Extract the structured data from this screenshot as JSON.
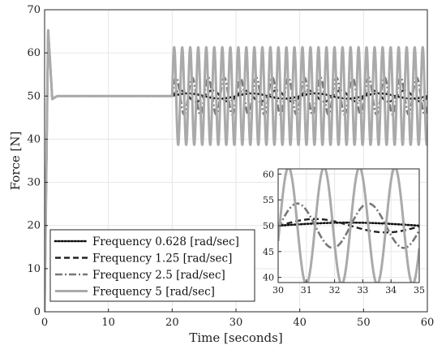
{
  "chart_data": [
    {
      "type": "line",
      "title": "",
      "xlabel": "Time [seconds]",
      "ylabel": "Force [N]",
      "xlim": [
        0,
        60
      ],
      "ylim": [
        0,
        70
      ],
      "xticks": [
        0,
        10,
        20,
        30,
        40,
        50,
        60
      ],
      "yticks": [
        0,
        10,
        20,
        30,
        40,
        50,
        60,
        70
      ],
      "grid": true,
      "legend_position": "bottom-left",
      "series": [
        {
          "name": "Frequency 0.628 [rad/sec]",
          "color": "#111111",
          "style": "dotted",
          "transient": {
            "peak": 65.5,
            "steady": 50
          },
          "oscillation": {
            "start": 20,
            "center": 50,
            "amplitude": 0.6,
            "omega": 0.628,
            "phase": 0
          }
        },
        {
          "name": "Frequency 1.25 [rad/sec]",
          "color": "#222222",
          "style": "dashed",
          "transient": {
            "peak": 65.5,
            "steady": 50
          },
          "oscillation": {
            "start": 20,
            "center": 50,
            "amplitude": 1.3,
            "omega": 1.25,
            "phase": 0
          }
        },
        {
          "name": "Frequency 2.5 [rad/sec]",
          "color": "#777777",
          "style": "dashdot",
          "transient": {
            "peak": 65.5,
            "steady": 50
          },
          "oscillation": {
            "start": 20,
            "center": 50,
            "amplitude": 4.3,
            "omega": 2.5,
            "phase": 0
          }
        },
        {
          "name": "Frequency 5 [rad/sec]",
          "color": "#aaaaaa",
          "style": "solid",
          "transient": {
            "peak": 65.5,
            "steady": 50
          },
          "oscillation": {
            "start": 20,
            "center": 50,
            "amplitude": 11.3,
            "omega": 5,
            "phase": 0
          }
        }
      ]
    },
    {
      "type": "line",
      "title": "",
      "xlabel": "",
      "ylabel": "",
      "xlim": [
        30,
        35
      ],
      "ylim": [
        39,
        61
      ],
      "xticks": [
        30,
        31,
        32,
        33,
        34,
        35
      ],
      "yticks": [
        40,
        45,
        50,
        55,
        60
      ],
      "grid": true,
      "note_inset": "zoom of main plot"
    }
  ]
}
